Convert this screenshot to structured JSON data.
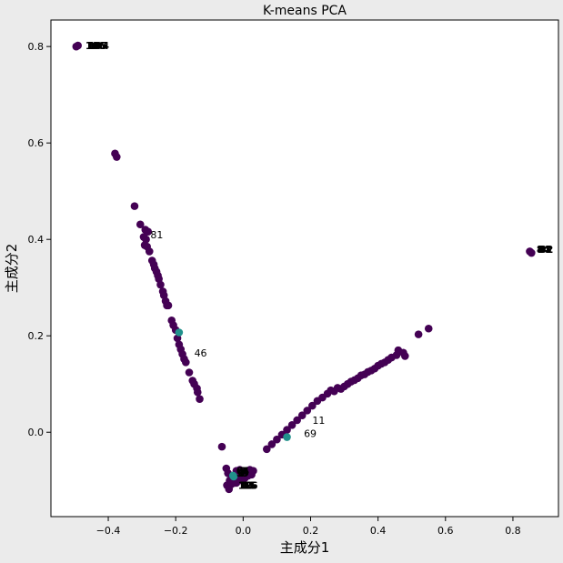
{
  "chart_data": {
    "type": "scatter",
    "title": "K-means PCA",
    "xlabel": "主成分1",
    "ylabel": "主成分2",
    "xlim": [
      -0.57,
      0.935
    ],
    "ylim": [
      -0.175,
      0.855
    ],
    "xticks": [
      -0.4,
      -0.2,
      0.0,
      0.2,
      0.4,
      0.6,
      0.8
    ],
    "xtick_labels": [
      "−0.4",
      "−0.2",
      "0.0",
      "0.2",
      "0.4",
      "0.6",
      "0.8"
    ],
    "yticks": [
      0.0,
      0.2,
      0.4,
      0.6,
      0.8
    ],
    "ytick_labels": [
      "0.0",
      "0.2",
      "0.4",
      "0.6",
      "0.8"
    ],
    "grid": false,
    "colors": {
      "cluster_0": "#440154",
      "cluster_1": "#21918c",
      "background": "#ebebeb",
      "plot_bg": "#ffffff"
    },
    "series": [
      {
        "name": "cluster_0",
        "points": [
          [
            -0.495,
            0.8
          ],
          [
            -0.49,
            0.802
          ],
          [
            -0.38,
            0.578
          ],
          [
            -0.375,
            0.571
          ],
          [
            -0.322,
            0.469
          ],
          [
            -0.305,
            0.431
          ],
          [
            -0.29,
            0.42
          ],
          [
            -0.282,
            0.416
          ],
          [
            -0.295,
            0.405
          ],
          [
            -0.288,
            0.4
          ],
          [
            -0.292,
            0.388
          ],
          [
            -0.285,
            0.385
          ],
          [
            -0.278,
            0.375
          ],
          [
            -0.27,
            0.356
          ],
          [
            -0.265,
            0.348
          ],
          [
            -0.262,
            0.34
          ],
          [
            -0.257,
            0.333
          ],
          [
            -0.253,
            0.325
          ],
          [
            -0.25,
            0.318
          ],
          [
            -0.245,
            0.306
          ],
          [
            -0.238,
            0.292
          ],
          [
            -0.235,
            0.284
          ],
          [
            -0.23,
            0.272
          ],
          [
            -0.226,
            0.263
          ],
          [
            -0.222,
            0.263
          ],
          [
            -0.212,
            0.232
          ],
          [
            -0.207,
            0.222
          ],
          [
            -0.2,
            0.212
          ],
          [
            -0.195,
            0.195
          ],
          [
            -0.19,
            0.182
          ],
          [
            -0.185,
            0.172
          ],
          [
            -0.18,
            0.162
          ],
          [
            -0.175,
            0.152
          ],
          [
            -0.17,
            0.145
          ],
          [
            -0.16,
            0.124
          ],
          [
            -0.15,
            0.107
          ],
          [
            -0.145,
            0.1
          ],
          [
            -0.137,
            0.091
          ],
          [
            -0.135,
            0.083
          ],
          [
            -0.129,
            0.069
          ],
          [
            -0.063,
            -0.03
          ],
          [
            -0.05,
            -0.075
          ],
          [
            -0.045,
            -0.085
          ],
          [
            -0.04,
            -0.1
          ],
          [
            -0.048,
            -0.11
          ],
          [
            -0.035,
            -0.108
          ],
          [
            -0.042,
            -0.118
          ],
          [
            -0.03,
            -0.095
          ],
          [
            -0.025,
            -0.105
          ],
          [
            -0.02,
            -0.08
          ],
          [
            -0.015,
            -0.092
          ],
          [
            -0.01,
            -0.078
          ],
          [
            -0.005,
            -0.1
          ],
          [
            0.0,
            -0.085
          ],
          [
            0.005,
            -0.095
          ],
          [
            0.01,
            -0.08
          ],
          [
            0.015,
            -0.09
          ],
          [
            0.02,
            -0.078
          ],
          [
            0.025,
            -0.088
          ],
          [
            0.03,
            -0.08
          ],
          [
            -0.02,
            -0.105
          ],
          [
            0.07,
            -0.035
          ],
          [
            0.085,
            -0.025
          ],
          [
            0.1,
            -0.015
          ],
          [
            0.115,
            -0.005
          ],
          [
            0.13,
            0.005
          ],
          [
            0.145,
            0.015
          ],
          [
            0.16,
            0.025
          ],
          [
            0.175,
            0.035
          ],
          [
            0.19,
            0.045
          ],
          [
            0.205,
            0.055
          ],
          [
            0.22,
            0.065
          ],
          [
            0.235,
            0.072
          ],
          [
            0.25,
            0.08
          ],
          [
            0.26,
            0.087
          ],
          [
            0.27,
            0.085
          ],
          [
            0.28,
            0.092
          ],
          [
            0.29,
            0.09
          ],
          [
            0.3,
            0.095
          ],
          [
            0.31,
            0.1
          ],
          [
            0.32,
            0.105
          ],
          [
            0.33,
            0.108
          ],
          [
            0.34,
            0.112
          ],
          [
            0.35,
            0.118
          ],
          [
            0.36,
            0.12
          ],
          [
            0.37,
            0.125
          ],
          [
            0.38,
            0.128
          ],
          [
            0.39,
            0.132
          ],
          [
            0.4,
            0.138
          ],
          [
            0.41,
            0.142
          ],
          [
            0.42,
            0.145
          ],
          [
            0.43,
            0.15
          ],
          [
            0.44,
            0.155
          ],
          [
            0.455,
            0.16
          ],
          [
            0.46,
            0.17
          ],
          [
            0.475,
            0.165
          ],
          [
            0.48,
            0.158
          ],
          [
            0.52,
            0.203
          ],
          [
            0.55,
            0.215
          ],
          [
            0.85,
            0.375
          ],
          [
            0.855,
            0.372
          ]
        ]
      },
      {
        "name": "cluster_1",
        "points": [
          [
            -0.19,
            0.207
          ],
          [
            -0.03,
            -0.09
          ],
          [
            -0.028,
            -0.092
          ],
          [
            0.13,
            -0.01
          ]
        ]
      }
    ],
    "annotations": [
      {
        "text": "81",
        "x": -0.275,
        "y": 0.41
      },
      {
        "text": "46",
        "x": -0.145,
        "y": 0.165
      },
      {
        "text": "69",
        "x": 0.18,
        "y": -0.002
      },
      {
        "text": "11",
        "x": 0.205,
        "y": 0.025
      },
      {
        "text": "106",
        "x": -0.468,
        "y": 0.802
      },
      {
        "text": "84",
        "x": 0.87,
        "y": 0.38
      }
    ],
    "overlapping_label_clusters": [
      {
        "x": -0.468,
        "y": 0.802,
        "labels": [
          "106",
          "105",
          "104"
        ]
      },
      {
        "x": 0.87,
        "y": 0.38,
        "labels": [
          "84",
          "83",
          "82"
        ]
      },
      {
        "x": -0.02,
        "y": -0.08,
        "labels": [
          "0",
          "1",
          "2",
          "3",
          "4",
          "5",
          "6",
          "7",
          "8",
          "9"
        ]
      },
      {
        "x": -0.015,
        "y": -0.11,
        "labels": [
          "12",
          "13",
          "14",
          "15",
          "16"
        ]
      }
    ]
  }
}
